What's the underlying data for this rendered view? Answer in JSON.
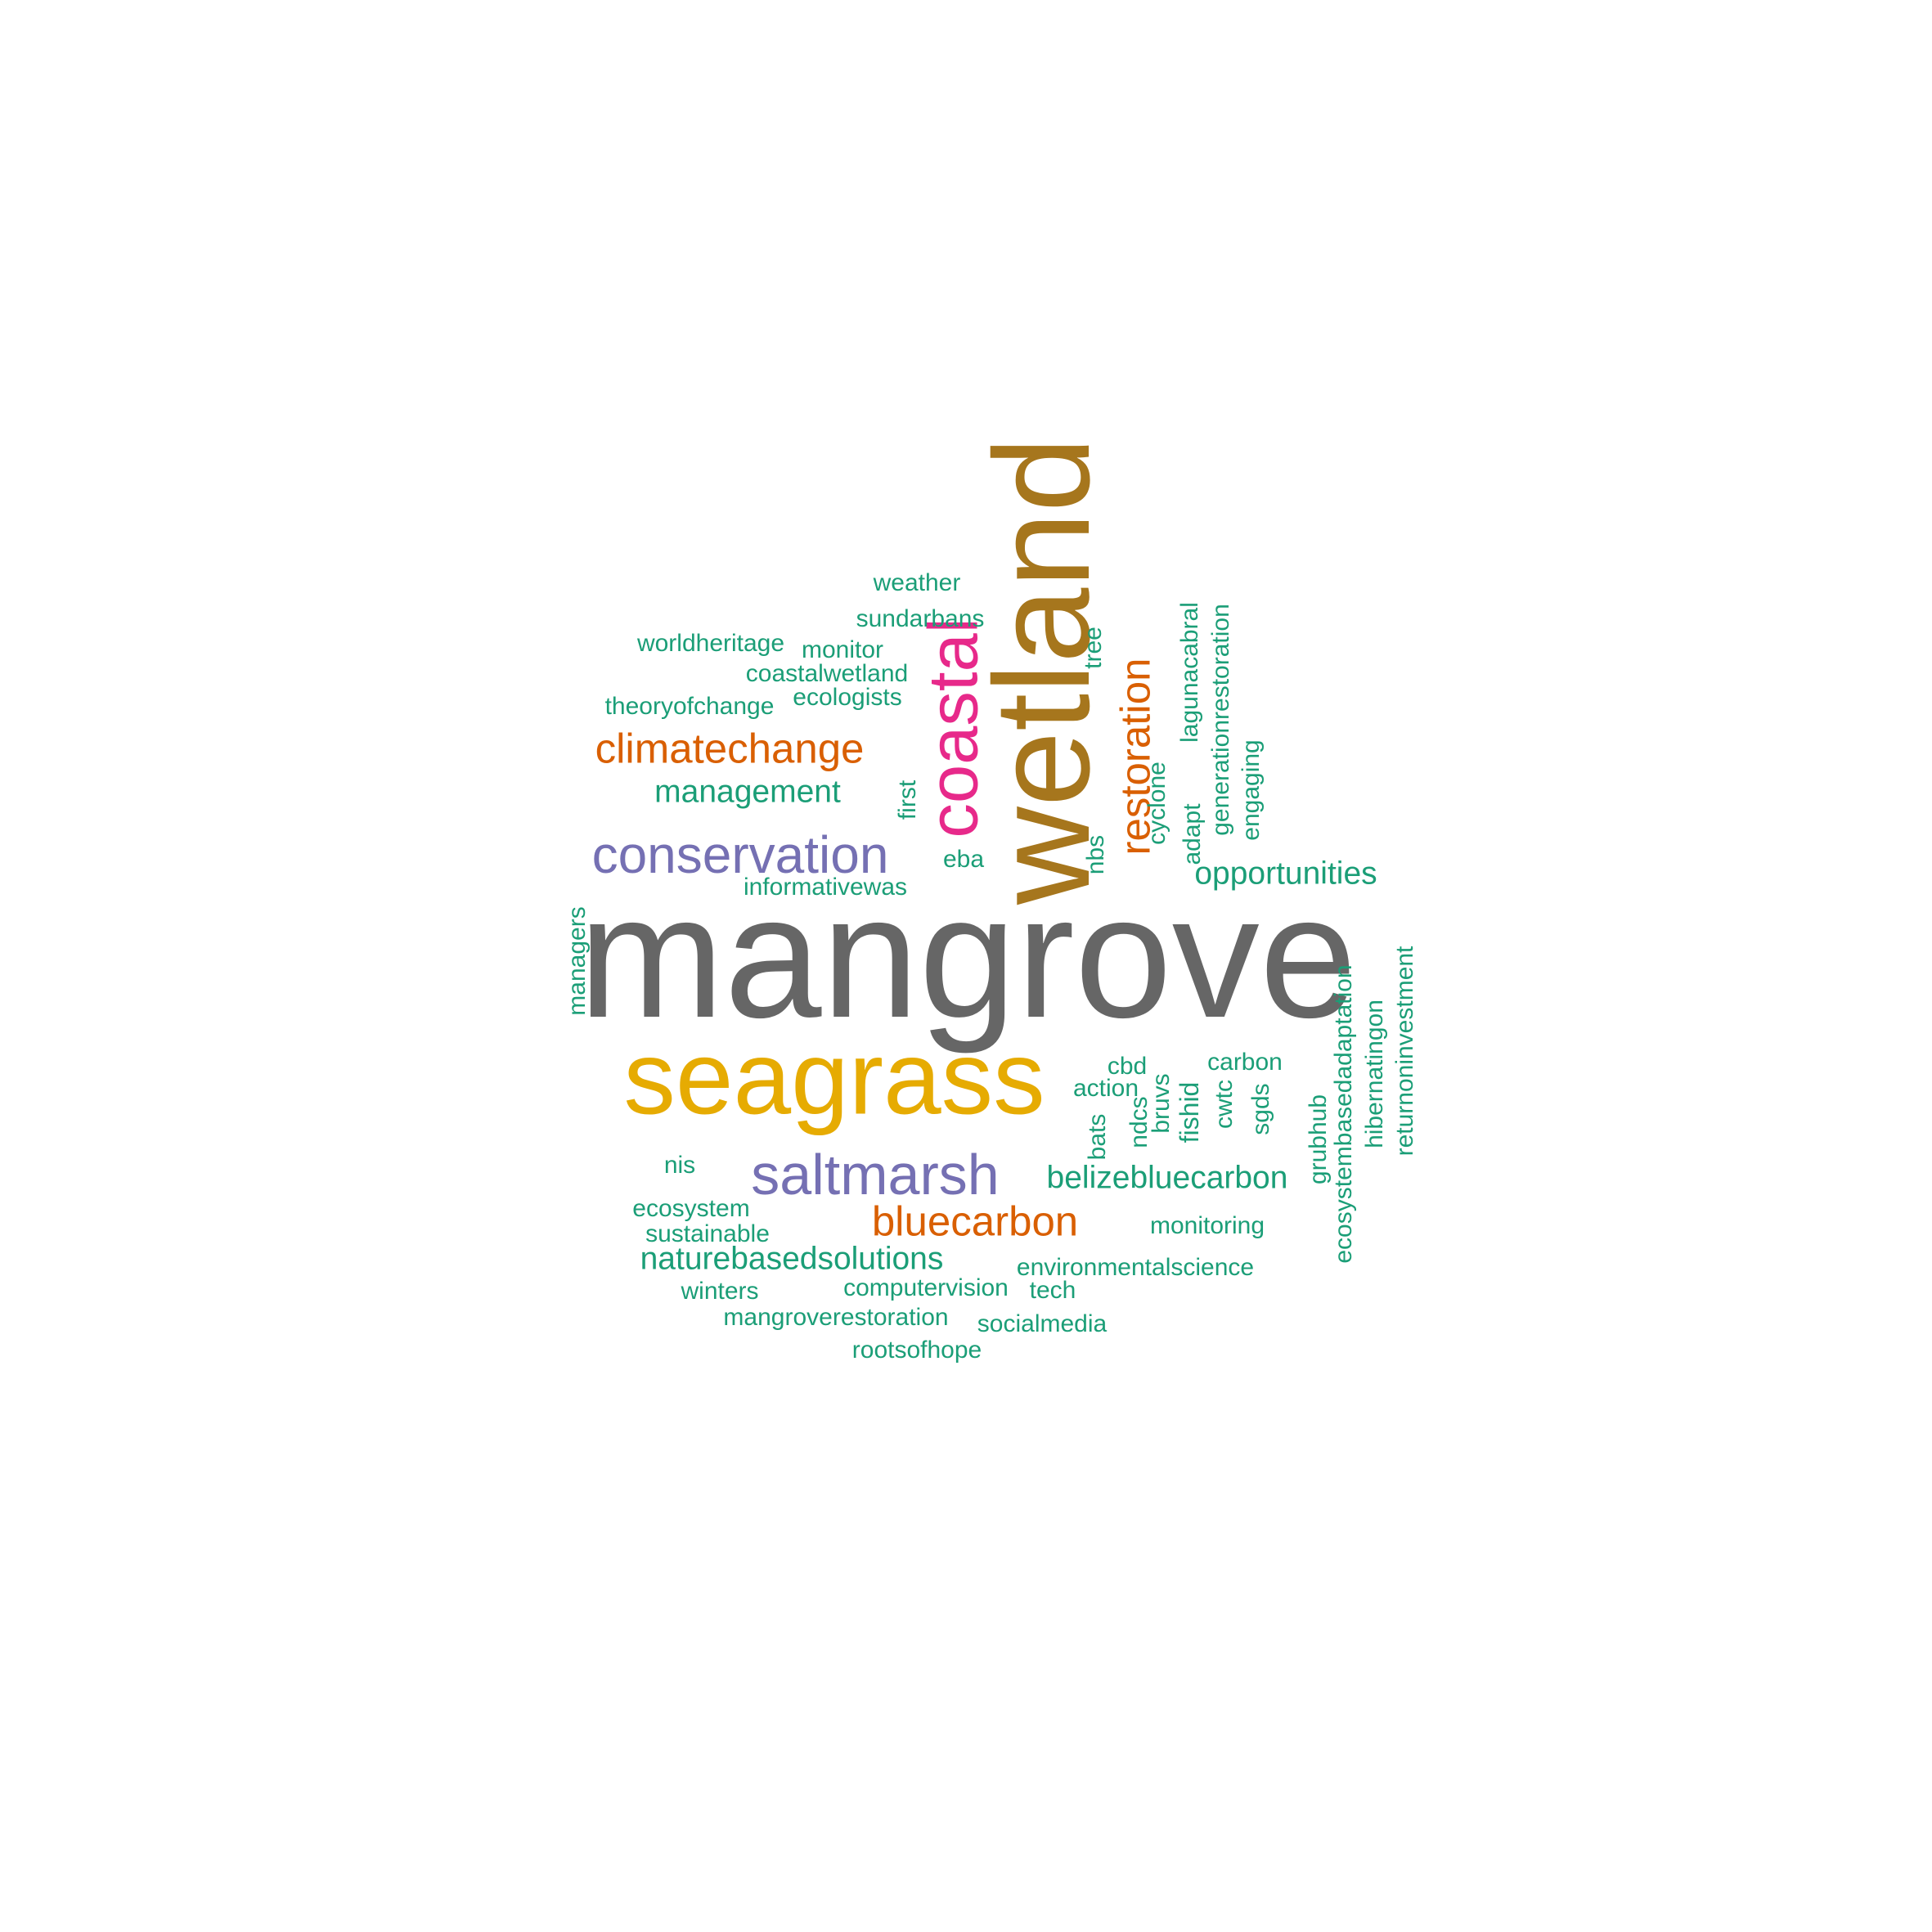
{
  "palette": {
    "green": "#1B9E77",
    "orange": "#D95F02",
    "purple": "#7570B3",
    "magenta": "#E7298A",
    "yellow": "#E6AB02",
    "brown": "#A6761D",
    "gray": "#666666"
  },
  "words": [
    {
      "text": "mangrove",
      "color": "gray",
      "weight": 100
    },
    {
      "text": "wetland",
      "color": "brown",
      "weight": 78
    },
    {
      "text": "seagrass",
      "color": "yellow",
      "weight": 60
    },
    {
      "text": "coastal",
      "color": "magenta",
      "weight": 40
    },
    {
      "text": "saltmarsh",
      "color": "purple",
      "weight": 33
    },
    {
      "text": "conservation",
      "color": "purple",
      "weight": 30
    },
    {
      "text": "restoration",
      "color": "orange",
      "weight": 25
    },
    {
      "text": "climatechange",
      "color": "orange",
      "weight": 25
    },
    {
      "text": "bluecarbon",
      "color": "orange",
      "weight": 25
    },
    {
      "text": "management",
      "color": "green",
      "weight": 16
    },
    {
      "text": "opportunities",
      "color": "green",
      "weight": 16
    },
    {
      "text": "belizebluecarbon",
      "color": "green",
      "weight": 16
    },
    {
      "text": "naturebasedsolutions",
      "color": "green",
      "weight": 16
    },
    {
      "text": "fishid",
      "color": "green",
      "weight": 16
    },
    {
      "text": "weather",
      "color": "green",
      "weight": 12
    },
    {
      "text": "sundarbans",
      "color": "green",
      "weight": 12
    },
    {
      "text": "worldheritage",
      "color": "green",
      "weight": 12
    },
    {
      "text": "monitor",
      "color": "green",
      "weight": 12
    },
    {
      "text": "coastalwetland",
      "color": "green",
      "weight": 12
    },
    {
      "text": "ecologists",
      "color": "green",
      "weight": 12
    },
    {
      "text": "theoryofchange",
      "color": "green",
      "weight": 12
    },
    {
      "text": "tree",
      "color": "green",
      "weight": 12
    },
    {
      "text": "lagunacabral",
      "color": "green",
      "weight": 12
    },
    {
      "text": "generationrestoration",
      "color": "green",
      "weight": 12
    },
    {
      "text": "engaging",
      "color": "green",
      "weight": 12
    },
    {
      "text": "cyclone",
      "color": "green",
      "weight": 12
    },
    {
      "text": "adapt",
      "color": "green",
      "weight": 12
    },
    {
      "text": "first",
      "color": "green",
      "weight": 12
    },
    {
      "text": "eba",
      "color": "green",
      "weight": 12
    },
    {
      "text": "nbs",
      "color": "green",
      "weight": 12
    },
    {
      "text": "informativewas",
      "color": "green",
      "weight": 12
    },
    {
      "text": "managers",
      "color": "green",
      "weight": 12
    },
    {
      "text": "ecosystembasedadaptation",
      "color": "green",
      "weight": 12
    },
    {
      "text": "hibernatingon",
      "color": "green",
      "weight": 12
    },
    {
      "text": "returnoninvestment",
      "color": "green",
      "weight": 12
    },
    {
      "text": "cbd",
      "color": "green",
      "weight": 12
    },
    {
      "text": "carbon",
      "color": "green",
      "weight": 12
    },
    {
      "text": "action",
      "color": "green",
      "weight": 12
    },
    {
      "text": "bats",
      "color": "green",
      "weight": 12
    },
    {
      "text": "ndcs",
      "color": "green",
      "weight": 12
    },
    {
      "text": "bruvs",
      "color": "green",
      "weight": 12
    },
    {
      "text": "cwtc",
      "color": "green",
      "weight": 12
    },
    {
      "text": "sgds",
      "color": "green",
      "weight": 12
    },
    {
      "text": "grubhub",
      "color": "green",
      "weight": 12
    },
    {
      "text": "nis",
      "color": "green",
      "weight": 12
    },
    {
      "text": "ecosystem",
      "color": "green",
      "weight": 12
    },
    {
      "text": "sustainable",
      "color": "green",
      "weight": 12
    },
    {
      "text": "monitoring",
      "color": "green",
      "weight": 12
    },
    {
      "text": "environmentalscience",
      "color": "green",
      "weight": 12
    },
    {
      "text": "computervision",
      "color": "green",
      "weight": 12
    },
    {
      "text": "tech",
      "color": "green",
      "weight": 12
    },
    {
      "text": "winters",
      "color": "green",
      "weight": 12
    },
    {
      "text": "mangroverestoration",
      "color": "green",
      "weight": 12
    },
    {
      "text": "socialmedia",
      "color": "green",
      "weight": 12
    },
    {
      "text": "rootsofhope",
      "color": "green",
      "weight": 12
    }
  ]
}
